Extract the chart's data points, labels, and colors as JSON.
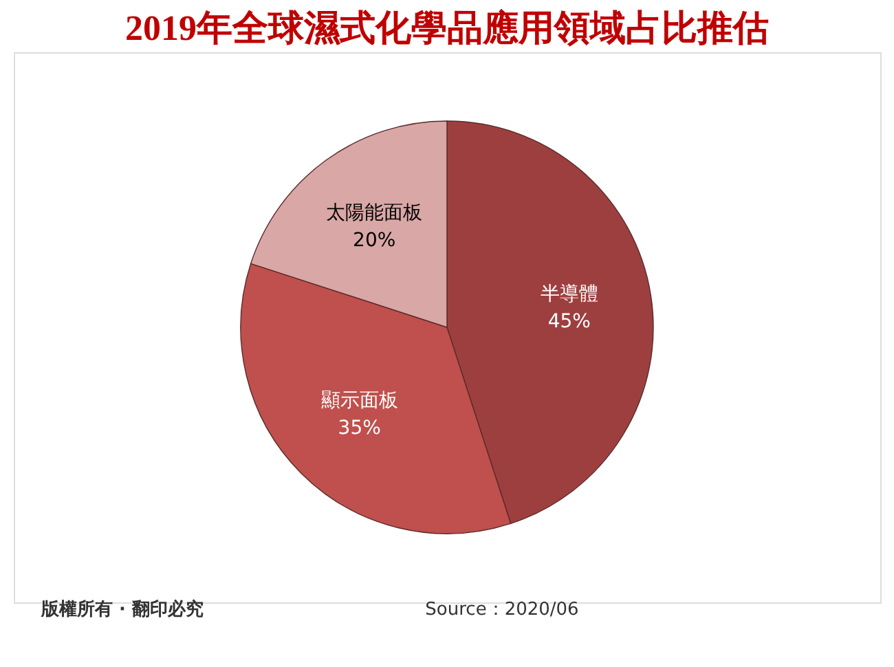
{
  "chart_data": {
    "type": "pie",
    "title": "2019年全球濕式化學品應用領域占比推估",
    "categories": [
      "半導體",
      "顯示面板",
      "太陽能面板"
    ],
    "values": [
      45,
      35,
      20
    ],
    "value_labels": [
      "45%",
      "35%",
      "20%"
    ],
    "colors": [
      "#9e3f3f",
      "#c0504d",
      "#d9a7a6"
    ],
    "annotations": [
      "版權所有 · 翻印必究",
      "Source：2020/06"
    ],
    "legend": false
  }
}
